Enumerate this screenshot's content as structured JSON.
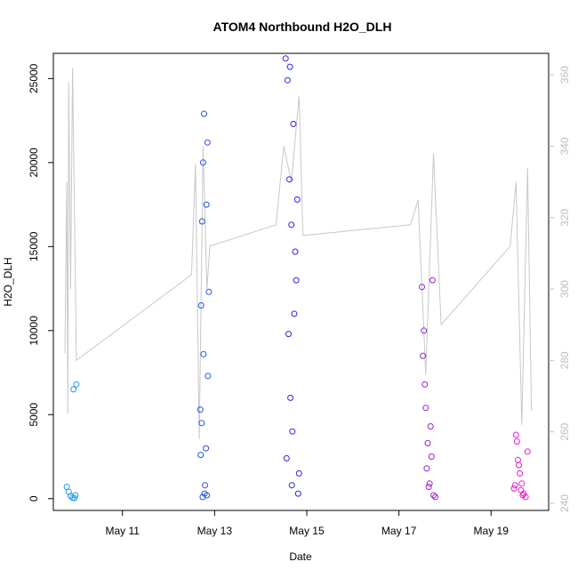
{
  "chart_data": {
    "type": "scatter",
    "title": "ATOM4 Northbound H2O_DLH",
    "xlabel": "Date",
    "ylabel": "H2O_DLH",
    "x_ticks": [
      "May 11",
      "May 13",
      "May 15",
      "May 17",
      "May 19"
    ],
    "y_ticks": [
      "0",
      "5000",
      "10000",
      "15000",
      "20000",
      "25000"
    ],
    "y_right_ticks": [
      "240",
      "260",
      "280",
      "300",
      "320",
      "340",
      "360"
    ],
    "xlim": [
      "May 9 12:00",
      "May 20 06:00"
    ],
    "ylim": [
      -700,
      26500
    ],
    "y_right_lim": [
      238,
      366
    ],
    "grid": false,
    "colors": {
      "scatter_start": "#1aa7e6",
      "scatter_mid": "#2a1fe8",
      "scatter_end": "#ff1ec8",
      "secondary_line": "#c8c8c8",
      "right_axis": "#bdbdbd"
    },
    "series": [
      {
        "kind": "points",
        "axis": "left",
        "x": [
          "May 9 19:00",
          "May 9 20:00",
          "May 9 21:00",
          "May 9 22:00",
          "May 9 23:00",
          "May 10 00:00",
          "May 9 22:30",
          "May 9 23:30",
          "May 12 16:30",
          "May 12 17:00",
          "May 12 17:30",
          "May 12 18:00",
          "May 12 18:30",
          "May 12 19:00",
          "May 12 19:30",
          "May 12 20:00",
          "May 12 20:30",
          "May 12 21:00",
          "May 12 16:45",
          "May 12 18:15",
          "May 12 19:45",
          "May 12 17:15",
          "May 12 20:15",
          "May 12 18:45",
          "May 12 17:45",
          "May 14 13:00",
          "May 14 14:00",
          "May 14 15:00",
          "May 14 16:00",
          "May 14 17:00",
          "May 14 18:00",
          "May 14 19:00",
          "May 14 20:00",
          "May 14 13:30",
          "May 14 14:30",
          "May 14 15:30",
          "May 14 16:30",
          "May 14 17:30",
          "May 14 18:30",
          "May 14 19:30",
          "May 14 15:15",
          "May 14 16:15",
          "May 17 12:00",
          "May 17 13:00",
          "May 17 14:00",
          "May 17 15:00",
          "May 17 16:00",
          "May 17 17:00",
          "May 17 18:00",
          "May 17 19:00",
          "May 17 12:30",
          "May 17 13:30",
          "May 17 14:30",
          "May 17 15:30",
          "May 17 16:30",
          "May 17 17:30",
          "May 19 12:00",
          "May 19 13:00",
          "May 19 14:00",
          "May 19 15:00",
          "May 19 16:00",
          "May 19 17:00",
          "May 19 18:00",
          "May 19 19:00",
          "May 19 12:30",
          "May 19 13:30",
          "May 19 14:30",
          "May 19 15:30",
          "May 19 16:30"
        ],
        "y": [
          700,
          400,
          150,
          50,
          30,
          6800,
          6500,
          200,
          5300,
          11500,
          16500,
          20000,
          22900,
          800,
          3000,
          200,
          7300,
          12300,
          2600,
          8600,
          17500,
          4500,
          21200,
          300,
          100,
          26200,
          24900,
          19000,
          16300,
          22300,
          14700,
          17800,
          1500,
          2400,
          9800,
          6000,
          4000,
          11000,
          13000,
          300,
          25700,
          800,
          12600,
          10000,
          5400,
          3300,
          900,
          2500,
          200,
          100,
          8500,
          6800,
          1800,
          700,
          4300,
          13000,
          600,
          3800,
          2300,
          1500,
          900,
          300,
          100,
          2800,
          800,
          3400,
          2000,
          500,
          200
        ]
      },
      {
        "kind": "line",
        "axis": "right",
        "x": [
          "May 9 18:00",
          "May 9 19:00",
          "May 9 19:30",
          "May 9 20:00",
          "May 9 21:00",
          "May 9 22:00",
          "May 10 00:00",
          "May 12 12:00",
          "May 12 14:00",
          "May 12 16:00",
          "May 12 18:00",
          "May 12 20:00",
          "May 12 21:30",
          "May 14 08:00",
          "May 14 12:00",
          "May 14 16:00",
          "May 14 20:00",
          "May 14 22:00",
          "May 17 06:00",
          "May 17 10:00",
          "May 17 14:00",
          "May 17 18:00",
          "May 17 22:00",
          "May 19 10:00",
          "May 19 13:00",
          "May 19 16:00",
          "May 19 19:00",
          "May 19 21:00"
        ],
        "y": [
          282,
          330,
          265,
          358,
          300,
          362,
          280,
          304,
          335,
          258,
          340,
          300,
          312,
          318,
          340,
          330,
          354,
          315,
          318,
          325,
          276,
          338,
          290,
          312,
          330,
          262,
          334,
          266
        ]
      }
    ]
  }
}
